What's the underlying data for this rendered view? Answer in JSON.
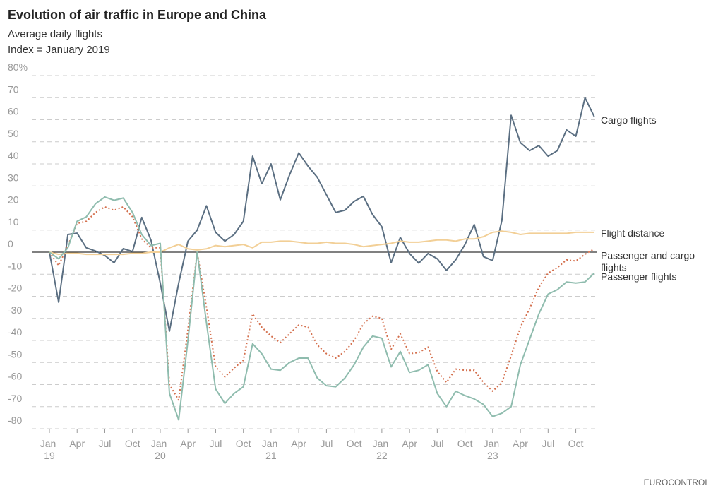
{
  "chart_data": {
    "type": "line",
    "title": "Evolution of air traffic in Europe and China",
    "subtitle": [
      "Average daily flights",
      "Index = January 2019"
    ],
    "source": "EUROCONTROL",
    "categories": [
      "Jan 19",
      null,
      null,
      "Apr",
      null,
      null,
      "Jul",
      null,
      null,
      "Oct",
      null,
      null,
      "Jan 20",
      null,
      null,
      "Apr",
      null,
      null,
      "Jul",
      null,
      null,
      "Oct",
      null,
      null,
      "Jan 21",
      null,
      null,
      "Apr",
      null,
      null,
      "Jul",
      null,
      null,
      "Oct",
      null,
      null,
      "Jan 22",
      null,
      null,
      "Apr",
      null,
      null,
      "Jul",
      null,
      null,
      "Oct",
      null,
      null,
      "Jan 23",
      null,
      null,
      "Apr",
      null,
      null,
      "Jul",
      null,
      null,
      "Oct",
      null,
      null
    ],
    "ylim": [
      -80,
      80
    ],
    "yticks": [
      -80,
      -70,
      -60,
      -50,
      -40,
      -30,
      -20,
      -10,
      0,
      10,
      20,
      30,
      40,
      50,
      60,
      70,
      {
        "value": 80,
        "label": "80%"
      }
    ],
    "grid": true,
    "series": [
      {
        "name": "Cargo flights",
        "color": "#5b6f82",
        "style": "solid",
        "values": [
          0,
          -22.7,
          8,
          8.6,
          2,
          0.5,
          -1.5,
          -4.8,
          1.6,
          0.3,
          15.7,
          5.4,
          -14,
          -35.8,
          -14,
          5,
          10,
          21,
          9,
          5,
          8,
          14,
          43.5,
          31,
          40,
          23.7,
          35,
          45,
          39,
          34,
          26,
          18,
          19,
          23,
          25.3,
          17,
          11.5,
          -4.8,
          6.7,
          -0.6,
          -5,
          -0.6,
          -3,
          -8.3,
          -3.5,
          3.5,
          12.5,
          -2,
          -3.8,
          14.4,
          62,
          49.6,
          46,
          48.3,
          43.5,
          46,
          55.4,
          52.5,
          70,
          61.4
        ]
      },
      {
        "name": "Flight distance",
        "color": "#f2cf96",
        "style": "solid",
        "values": [
          0,
          -1,
          -0.5,
          -0.5,
          -1,
          -1,
          -1,
          -1,
          -1,
          -0.5,
          -0.5,
          0,
          0,
          2,
          3.5,
          1.5,
          1,
          1.5,
          3,
          2.5,
          3,
          3.5,
          2,
          4.5,
          4.5,
          5,
          5,
          4.5,
          4,
          4,
          4.5,
          4,
          4,
          3.5,
          2.5,
          3,
          3.5,
          4,
          5,
          4.5,
          4.5,
          5,
          5.5,
          5.5,
          5,
          6,
          6,
          7,
          9,
          9.5,
          9,
          8,
          8.5,
          8.5,
          8.5,
          8.5,
          8.5,
          9,
          9,
          9
        ]
      },
      {
        "name": "Passenger and cargo flights",
        "color": "#d4704e",
        "style": "dotted",
        "values": [
          0,
          -6,
          3,
          13,
          14,
          18,
          20.5,
          19,
          20.5,
          16,
          6,
          2,
          2,
          -60,
          -67,
          -35,
          0,
          -25,
          -52,
          -56.5,
          -52.5,
          -49,
          -28,
          -34,
          -38,
          -41,
          -37,
          -33,
          -34,
          -42,
          -46,
          -48,
          -45,
          -40,
          -32.5,
          -29,
          -30,
          -44,
          -37,
          -46,
          -45.5,
          -43,
          -54,
          -59,
          -53,
          -53.5,
          -53.5,
          -59,
          -63,
          -59,
          -47,
          -34,
          -25.5,
          -16,
          -9.5,
          -7,
          -3.5,
          -4,
          -1,
          1.5
        ]
      },
      {
        "name": "Passenger flights",
        "color": "#8fbcae",
        "style": "solid",
        "values": [
          0,
          -3,
          2,
          14,
          16,
          22,
          25,
          23.5,
          24.5,
          18,
          8,
          3,
          4,
          -64,
          -76,
          -40,
          0,
          -32,
          -62,
          -68.5,
          -64,
          -61,
          -41.5,
          -46,
          -53,
          -53.5,
          -50,
          -48,
          -48,
          -57,
          -60.5,
          -61,
          -57,
          -51,
          -43,
          -38,
          -39,
          -52,
          -45,
          -54.5,
          -53.5,
          -51,
          -64,
          -70,
          -63,
          -65,
          -66.5,
          -69,
          -74.5,
          -73,
          -70,
          -51,
          -39.5,
          -28,
          -19,
          -17,
          -13.5,
          -14,
          -13.5,
          -9.5
        ]
      }
    ]
  }
}
